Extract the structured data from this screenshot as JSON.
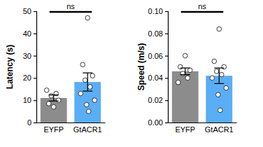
{
  "chart_data": [
    {
      "type": "bar",
      "ylabel": "Latency (s)",
      "categories": [
        "EYFP",
        "GtACR1"
      ],
      "values": [
        11.0,
        18.2
      ],
      "errors": [
        1.4,
        4.1
      ],
      "points": [
        [
          7,
          8.5,
          10,
          12,
          13,
          14.5
        ],
        [
          47,
          26,
          21,
          19,
          16,
          13,
          10,
          8,
          5
        ]
      ],
      "colors": [
        "#8c8c8c",
        "#5aaef5"
      ],
      "ylim": [
        0,
        50
      ],
      "yticks": [
        0,
        10,
        20,
        30,
        40,
        50
      ],
      "annotation": "ns"
    },
    {
      "type": "bar",
      "ylabel": "Speed (m/s)",
      "categories": [
        "EYFP",
        "GtACR1"
      ],
      "values": [
        0.046,
        0.042
      ],
      "errors": [
        0.003,
        0.007
      ],
      "points": [
        [
          0.06,
          0.05,
          0.047,
          0.044,
          0.04,
          0.036
        ],
        [
          0.084,
          0.055,
          0.05,
          0.046,
          0.043,
          0.04,
          0.031,
          0.025,
          0.011
        ]
      ],
      "colors": [
        "#8c8c8c",
        "#5aaef5"
      ],
      "ylim": [
        0,
        0.1
      ],
      "yticks": [
        {
          "value": 0,
          "label": "0.00"
        },
        {
          "value": 0.02,
          "label": "0.02"
        },
        {
          "value": 0.04,
          "label": "0.04"
        },
        {
          "value": 0.06,
          "label": "0.06"
        },
        {
          "value": 0.08,
          "label": "0.08"
        },
        {
          "value": 0.1,
          "label": "0.10"
        }
      ],
      "annotation": "ns"
    }
  ]
}
